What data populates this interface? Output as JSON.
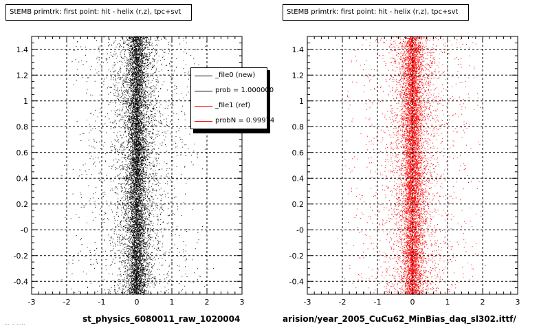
{
  "panels": [
    {
      "title": "StEMB primtrk: first point: hit - helix (r,z), tpc+svt",
      "xcaption": "st_physics_6080011_raw_1020004",
      "color": "#000000"
    },
    {
      "title": "StEMB primtrk: first point: hit - helix (r,z), tpc+svt",
      "xcaption": "arision/year_2005_CuCu62_MinBias_daq_sl302.ittf/",
      "color": "#ff0000"
    }
  ],
  "legend": {
    "entries": [
      {
        "label": "_file0 (new)",
        "color": "#000000"
      },
      {
        "label": "prob = 1.000000",
        "color": "#000000"
      },
      {
        "label": "_file1 (ref)",
        "color": "#ff0000"
      },
      {
        "label": "probN = 0.99974",
        "color": "#ff0000"
      }
    ]
  },
  "footer_note": "... .. .....",
  "chart_data": [
    {
      "type": "scatter",
      "title": "StEMB primtrk: first point: hit - helix (r,z), tpc+svt",
      "xlabel": "st_physics_6080011_raw_1020004",
      "ylabel": "",
      "xlim": [
        -3,
        3
      ],
      "ylim": [
        -0.5,
        1.5
      ],
      "xticks": [
        "-3",
        "-2",
        "-1",
        "0",
        "1",
        "2",
        "3"
      ],
      "yticks": [
        "-0.4",
        "-0.2",
        "-0",
        "0.2",
        "0.4",
        "0.6",
        "0.8",
        "1",
        "1.2",
        "1.4"
      ],
      "grid": true,
      "legend_position": "top-right",
      "series": [
        {
          "name": "_file0 (new)",
          "color": "#000000",
          "x_center": 0,
          "x_spread": 0.35,
          "density": "dense band near x=0"
        }
      ]
    },
    {
      "type": "scatter",
      "title": "StEMB primtrk: first point: hit - helix (r,z), tpc+svt",
      "xlabel": "arision/year_2005_CuCu62_MinBias_daq_sl302.ittf/",
      "ylabel": "",
      "xlim": [
        -3,
        3
      ],
      "ylim": [
        -0.5,
        1.5
      ],
      "xticks": [
        "-3",
        "-2",
        "-1",
        "0",
        "1",
        "2",
        "3"
      ],
      "yticks": [
        "-0.4",
        "-0.2",
        "-0",
        "0.2",
        "0.4",
        "0.6",
        "0.8",
        "1",
        "1.2",
        "1.4"
      ],
      "grid": true,
      "series": [
        {
          "name": "_file1 (ref)",
          "color": "#ff0000",
          "x_center": 0,
          "x_spread": 0.35,
          "density": "dense band near x=0"
        }
      ]
    }
  ]
}
